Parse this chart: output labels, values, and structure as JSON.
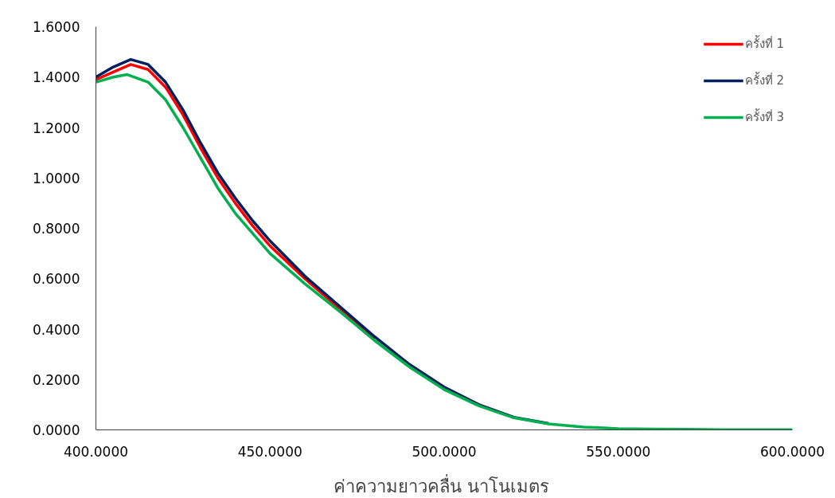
{
  "chart_data": {
    "type": "line",
    "xlabel": "ค่าความยาวคลื่น  นาโนเมตร",
    "xlim": [
      400,
      600
    ],
    "xticks": [
      {
        "value": 400,
        "label": "400.0000"
      },
      {
        "value": 450,
        "label": "450.0000"
      },
      {
        "value": 500,
        "label": "500.0000"
      },
      {
        "value": 550,
        "label": "550.0000"
      },
      {
        "value": 600,
        "label": "600.0000"
      }
    ],
    "ylim": [
      0,
      1.6
    ],
    "yticks": [
      {
        "value": 0,
        "label": "0.0000"
      },
      {
        "value": 0.2,
        "label": "0.2000"
      },
      {
        "value": 0.4,
        "label": "0.4000"
      },
      {
        "value": 0.6,
        "label": "0.6000"
      },
      {
        "value": 0.8,
        "label": "0.8000"
      },
      {
        "value": 1.0,
        "label": "1.0000"
      },
      {
        "value": 1.2,
        "label": "1.2000"
      },
      {
        "value": 1.4,
        "label": "1.4000"
      },
      {
        "value": 1.6,
        "label": "1.6000"
      }
    ],
    "grid": false,
    "legend": "top right",
    "marker": "none",
    "line_style": "solid",
    "series": [
      {
        "name": "ครั้งที่ 1",
        "color": "#ff0000",
        "x": [
          400,
          405,
          410,
          415,
          420,
          425,
          430,
          435,
          440,
          445,
          450,
          460,
          470,
          480
        ],
        "values": [
          1.39,
          1.42,
          1.45,
          1.43,
          1.36,
          1.25,
          1.12,
          1.0,
          0.9,
          0.81,
          0.73,
          0.6,
          0.48,
          0.36
        ]
      },
      {
        "name": "ครั้งที่ 2",
        "color": "#002060",
        "x": [
          400,
          405,
          410,
          415,
          420,
          425,
          430,
          435,
          440,
          445,
          450,
          460,
          470,
          480,
          490,
          500,
          510,
          520,
          530
        ],
        "values": [
          1.4,
          1.44,
          1.47,
          1.45,
          1.38,
          1.27,
          1.14,
          1.02,
          0.92,
          0.83,
          0.75,
          0.61,
          0.49,
          0.37,
          0.26,
          0.17,
          0.1,
          0.05,
          0.025
        ]
      },
      {
        "name": "ครั้งที่ 3",
        "color": "#00b050",
        "x": [
          400,
          405,
          409,
          415,
          420,
          425,
          430,
          435,
          440,
          445,
          450,
          460,
          470,
          480,
          490,
          500,
          510,
          520,
          530,
          540,
          550,
          560,
          570,
          580,
          590,
          600
        ],
        "values": [
          1.38,
          1.4,
          1.41,
          1.38,
          1.31,
          1.2,
          1.08,
          0.96,
          0.86,
          0.78,
          0.7,
          0.58,
          0.47,
          0.355,
          0.25,
          0.16,
          0.095,
          0.048,
          0.024,
          0.011,
          0.005,
          0.003,
          0.002,
          0.001,
          0.001,
          0.001
        ]
      }
    ]
  }
}
